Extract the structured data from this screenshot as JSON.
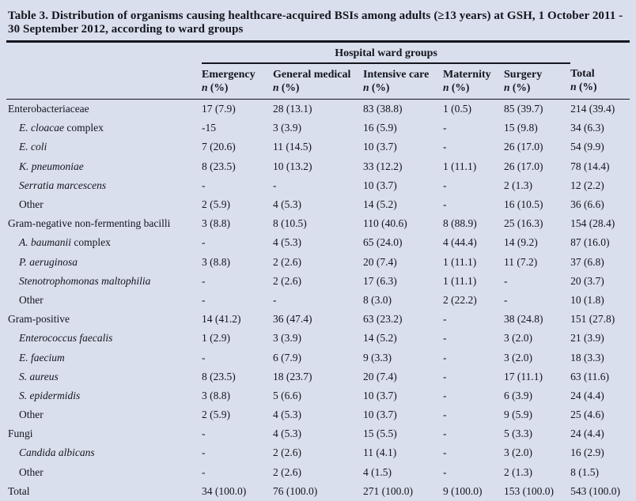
{
  "title_line1": "Table 3. Distribution of organisms causing healthcare-acquired BSIs among adults (≥13 years) at GSH, 1 October 2011 -",
  "title_line2": "30 September 2012, according to ward groups",
  "colors": {
    "background": "#d9dfec",
    "text": "#14151f",
    "rule": "#14151f"
  },
  "header": {
    "group_label": "Hospital ward groups",
    "columns": [
      {
        "key": "emergency",
        "label": "Emergency",
        "sub_italic": "n",
        "sub_rest": " (%)"
      },
      {
        "key": "general-medical",
        "label": "General medical",
        "sub_italic": "n",
        "sub_rest": " (%)"
      },
      {
        "key": "intensive-care",
        "label": "Intensive care",
        "sub_italic": "n",
        "sub_rest": " (%)"
      },
      {
        "key": "maternity",
        "label": "Maternity",
        "sub_italic": "n",
        "sub_rest": " (%)"
      },
      {
        "key": "surgery",
        "label": "Surgery",
        "sub_italic": "n",
        "sub_rest": " (%)"
      },
      {
        "key": "total",
        "label": "Total",
        "sub_italic": "n",
        "sub_rest": " (%)"
      }
    ]
  },
  "rows": [
    {
      "italic": "",
      "rest": "Enterobacteriaceae",
      "indent": false,
      "cells": [
        "17 (7.9)",
        "28 (13.1)",
        "83 (38.8)",
        "1 (0.5)",
        "85 (39.7)",
        "214 (39.4)"
      ]
    },
    {
      "italic": "E. cloacae",
      "rest": " complex",
      "indent": true,
      "cells": [
        "-15",
        "3 (3.9)",
        "16 (5.9)",
        "-",
        "15 (9.8)",
        "34 (6.3)"
      ]
    },
    {
      "italic": "E. coli",
      "rest": "",
      "indent": true,
      "cells": [
        "7 (20.6)",
        "11 (14.5)",
        "10 (3.7)",
        "-",
        "26 (17.0)",
        "54 (9.9)"
      ]
    },
    {
      "italic": "K. pneumoniae",
      "rest": "",
      "indent": true,
      "cells": [
        "8 (23.5)",
        "10 (13.2)",
        "33 (12.2)",
        "1 (11.1)",
        "26 (17.0)",
        "78 (14.4)"
      ]
    },
    {
      "italic": "Serratia marcescens",
      "rest": "",
      "indent": true,
      "cells": [
        "-",
        "-",
        "10 (3.7)",
        "-",
        "2 (1.3)",
        "12 (2.2)"
      ]
    },
    {
      "italic": "",
      "rest": "Other",
      "indent": true,
      "cells": [
        "2 (5.9)",
        "4 (5.3)",
        "14 (5.2)",
        "-",
        "16 (10.5)",
        "36 (6.6)"
      ]
    },
    {
      "italic": "",
      "rest": "Gram-negative non-fermenting bacilli",
      "indent": false,
      "cells": [
        "3 (8.8)",
        "8 (10.5)",
        "110 (40.6)",
        "8 (88.9)",
        "25 (16.3)",
        "154 (28.4)"
      ]
    },
    {
      "italic": "A. baumanii",
      "rest": " complex",
      "indent": true,
      "cells": [
        "-",
        "4 (5.3)",
        "65 (24.0)",
        "4 (44.4)",
        "14 (9.2)",
        "87 (16.0)"
      ]
    },
    {
      "italic": "P. aeruginosa",
      "rest": "",
      "indent": true,
      "cells": [
        "3 (8.8)",
        "2 (2.6)",
        "20 (7.4)",
        "1 (11.1)",
        "11 (7.2)",
        "37 (6.8)"
      ]
    },
    {
      "italic": "Stenotrophomonas maltophilia",
      "rest": "",
      "indent": true,
      "cells": [
        "-",
        "2 (2.6)",
        "17 (6.3)",
        "1 (11.1)",
        "-",
        "20 (3.7)"
      ]
    },
    {
      "italic": "",
      "rest": "Other",
      "indent": true,
      "cells": [
        "-",
        "-",
        "8 (3.0)",
        "2 (22.2)",
        "-",
        "10 (1.8)"
      ]
    },
    {
      "italic": "",
      "rest": "Gram-positive",
      "indent": false,
      "cells": [
        "14 (41.2)",
        "36 (47.4)",
        "63 (23.2)",
        "-",
        "38 (24.8)",
        "151 (27.8)"
      ]
    },
    {
      "italic": "Enterococcus faecalis",
      "rest": "",
      "indent": true,
      "cells": [
        "1 (2.9)",
        "3 (3.9)",
        "14 (5.2)",
        "-",
        "3 (2.0)",
        "21 (3.9)"
      ]
    },
    {
      "italic": "E. faecium",
      "rest": "",
      "indent": true,
      "cells": [
        "-",
        "6 (7.9)",
        "9 (3.3)",
        "-",
        "3 (2.0)",
        "18 (3.3)"
      ]
    },
    {
      "italic": "S. aureus",
      "rest": "",
      "indent": true,
      "cells": [
        "8 (23.5)",
        "18 (23.7)",
        "20 (7.4)",
        "-",
        "17 (11.1)",
        "63 (11.6)"
      ]
    },
    {
      "italic": "S. epidermidis",
      "rest": "",
      "indent": true,
      "cells": [
        "3 (8.8)",
        "5 (6.6)",
        "10 (3.7)",
        "-",
        "6 (3.9)",
        "24 (4.4)"
      ]
    },
    {
      "italic": "",
      "rest": "Other",
      "indent": true,
      "cells": [
        "2 (5.9)",
        "4 (5.3)",
        "10 (3.7)",
        "-",
        "9 (5.9)",
        "25 (4.6)"
      ]
    },
    {
      "italic": "",
      "rest": "Fungi",
      "indent": false,
      "cells": [
        "-",
        "4 (5.3)",
        "15 (5.5)",
        "-",
        "5 (3.3)",
        "24 (4.4)"
      ]
    },
    {
      "italic": "Candida albicans",
      "rest": "",
      "indent": true,
      "cells": [
        "-",
        "2 (2.6)",
        "11 (4.1)",
        "-",
        "3 (2.0)",
        "16 (2.9)"
      ]
    },
    {
      "italic": "",
      "rest": "Other",
      "indent": true,
      "cells": [
        "-",
        "2 (2.6)",
        "4 (1.5)",
        "-",
        "2 (1.3)",
        "8 (1.5)"
      ]
    },
    {
      "italic": "",
      "rest": "Total",
      "indent": false,
      "cells": [
        "34 (100.0)",
        "76 (100.0)",
        "271 (100.0)",
        "9 (100.0)",
        "153 (100.0)",
        "543 (100.0)"
      ]
    }
  ]
}
